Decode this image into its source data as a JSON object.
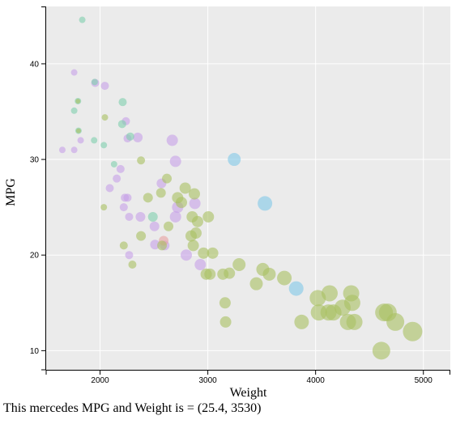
{
  "caption": "This mercedes MPG and Weight is = (25.4, 3530)",
  "chart_data": {
    "type": "scatter",
    "title": "",
    "xlabel": "Weight",
    "ylabel": "MPG",
    "xlim": [
      1500,
      5250
    ],
    "ylim": [
      8,
      46
    ],
    "xticks": [
      2000,
      3000,
      4000,
      5000
    ],
    "yticks": [
      10,
      20,
      30,
      40
    ],
    "grid": true,
    "background": "#ebebeb",
    "grid_color": "#ffffff",
    "series": [
      {
        "color": "#c6a0e8",
        "points": [
          {
            "x": 1760,
            "y": 39.1,
            "r": 4
          },
          {
            "x": 1650,
            "y": 31.0,
            "r": 4
          },
          {
            "x": 1760,
            "y": 31.0,
            "r": 4
          },
          {
            "x": 1820,
            "y": 32.0,
            "r": 4
          },
          {
            "x": 1955,
            "y": 38.0,
            "r": 5
          },
          {
            "x": 2045,
            "y": 37.7,
            "r": 5
          },
          {
            "x": 2155,
            "y": 28.0,
            "r": 5
          },
          {
            "x": 2190,
            "y": 29.0,
            "r": 5
          },
          {
            "x": 2090,
            "y": 27.0,
            "r": 5
          },
          {
            "x": 2240,
            "y": 34.0,
            "r": 5
          },
          {
            "x": 2255,
            "y": 32.2,
            "r": 5
          },
          {
            "x": 2350,
            "y": 32.3,
            "r": 6
          },
          {
            "x": 2230,
            "y": 26.0,
            "r": 5
          },
          {
            "x": 2255,
            "y": 26.0,
            "r": 5
          },
          {
            "x": 2220,
            "y": 25.0,
            "r": 5
          },
          {
            "x": 2270,
            "y": 24.0,
            "r": 5
          },
          {
            "x": 2375,
            "y": 24.0,
            "r": 6
          },
          {
            "x": 2270,
            "y": 20.0,
            "r": 5
          },
          {
            "x": 2505,
            "y": 23.0,
            "r": 6
          },
          {
            "x": 2510,
            "y": 21.1,
            "r": 6
          },
          {
            "x": 2570,
            "y": 27.5,
            "r": 6
          },
          {
            "x": 2670,
            "y": 32.0,
            "r": 7
          },
          {
            "x": 2700,
            "y": 29.8,
            "r": 7
          },
          {
            "x": 2700,
            "y": 24.0,
            "r": 7
          },
          {
            "x": 2720,
            "y": 25.0,
            "r": 7
          },
          {
            "x": 2880,
            "y": 25.4,
            "r": 7
          },
          {
            "x": 2800,
            "y": 20.0,
            "r": 7
          },
          {
            "x": 2930,
            "y": 19.0,
            "r": 7
          },
          {
            "x": 2600,
            "y": 21.0,
            "r": 6
          }
        ]
      },
      {
        "color": "#e8a0a0",
        "points": [
          {
            "x": 2590,
            "y": 21.5,
            "r": 6
          }
        ]
      },
      {
        "color": "#7fcfae",
        "points": [
          {
            "x": 1835,
            "y": 44.6,
            "r": 4
          },
          {
            "x": 1950,
            "y": 38.1,
            "r": 4
          },
          {
            "x": 1795,
            "y": 36.1,
            "r": 4
          },
          {
            "x": 1760,
            "y": 35.1,
            "r": 4
          },
          {
            "x": 1800,
            "y": 33.0,
            "r": 4
          },
          {
            "x": 1945,
            "y": 32.0,
            "r": 4
          },
          {
            "x": 2035,
            "y": 31.5,
            "r": 4
          },
          {
            "x": 2130,
            "y": 29.5,
            "r": 4
          },
          {
            "x": 2210,
            "y": 36.0,
            "r": 5
          },
          {
            "x": 2205,
            "y": 33.7,
            "r": 5
          },
          {
            "x": 2280,
            "y": 32.4,
            "r": 5
          },
          {
            "x": 2490,
            "y": 24.0,
            "r": 6
          }
        ]
      },
      {
        "color": "#a8c060",
        "points": [
          {
            "x": 1795,
            "y": 36.1,
            "r": 3
          },
          {
            "x": 1800,
            "y": 33.0,
            "r": 3
          },
          {
            "x": 2045,
            "y": 34.4,
            "r": 4
          },
          {
            "x": 2035,
            "y": 25.0,
            "r": 4
          },
          {
            "x": 2220,
            "y": 21.0,
            "r": 5
          },
          {
            "x": 2300,
            "y": 19.0,
            "r": 5
          },
          {
            "x": 2380,
            "y": 29.9,
            "r": 5
          },
          {
            "x": 2380,
            "y": 22.0,
            "r": 6
          },
          {
            "x": 2445,
            "y": 26.0,
            "r": 6
          },
          {
            "x": 2565,
            "y": 26.5,
            "r": 6
          },
          {
            "x": 2575,
            "y": 21.0,
            "r": 6
          },
          {
            "x": 2620,
            "y": 28.0,
            "r": 6
          },
          {
            "x": 2635,
            "y": 23.0,
            "r": 6
          },
          {
            "x": 2720,
            "y": 26.0,
            "r": 7
          },
          {
            "x": 2755,
            "y": 25.5,
            "r": 7
          },
          {
            "x": 2790,
            "y": 27.0,
            "r": 7
          },
          {
            "x": 2845,
            "y": 22.0,
            "r": 7
          },
          {
            "x": 2855,
            "y": 24.0,
            "r": 7
          },
          {
            "x": 2865,
            "y": 21.0,
            "r": 7
          },
          {
            "x": 2875,
            "y": 26.4,
            "r": 7
          },
          {
            "x": 2890,
            "y": 22.3,
            "r": 7
          },
          {
            "x": 2905,
            "y": 23.5,
            "r": 7
          },
          {
            "x": 2960,
            "y": 20.2,
            "r": 7
          },
          {
            "x": 2985,
            "y": 18.0,
            "r": 7
          },
          {
            "x": 3005,
            "y": 24.0,
            "r": 7
          },
          {
            "x": 3020,
            "y": 18.0,
            "r": 7
          },
          {
            "x": 3045,
            "y": 20.2,
            "r": 7
          },
          {
            "x": 3140,
            "y": 18.0,
            "r": 7
          },
          {
            "x": 3160,
            "y": 15.0,
            "r": 7
          },
          {
            "x": 3165,
            "y": 13.0,
            "r": 7
          },
          {
            "x": 3200,
            "y": 18.1,
            "r": 7
          },
          {
            "x": 3290,
            "y": 19.0,
            "r": 8
          },
          {
            "x": 3450,
            "y": 17.0,
            "r": 8
          },
          {
            "x": 3510,
            "y": 18.5,
            "r": 8
          },
          {
            "x": 3570,
            "y": 18.0,
            "r": 8
          },
          {
            "x": 3710,
            "y": 17.6,
            "r": 9
          },
          {
            "x": 3870,
            "y": 13.0,
            "r": 9
          },
          {
            "x": 4020,
            "y": 15.5,
            "r": 10
          },
          {
            "x": 4030,
            "y": 14.0,
            "r": 10
          },
          {
            "x": 4120,
            "y": 14.0,
            "r": 10
          },
          {
            "x": 4130,
            "y": 16.0,
            "r": 10
          },
          {
            "x": 4165,
            "y": 14.0,
            "r": 10
          },
          {
            "x": 4250,
            "y": 14.5,
            "r": 10
          },
          {
            "x": 4300,
            "y": 13.0,
            "r": 10
          },
          {
            "x": 4330,
            "y": 16.0,
            "r": 10
          },
          {
            "x": 4340,
            "y": 15.0,
            "r": 10
          },
          {
            "x": 4360,
            "y": 13.0,
            "r": 10
          },
          {
            "x": 4610,
            "y": 10.0,
            "r": 11
          },
          {
            "x": 4635,
            "y": 14.0,
            "r": 11
          },
          {
            "x": 4670,
            "y": 14.0,
            "r": 11
          },
          {
            "x": 4740,
            "y": 13.0,
            "r": 11
          },
          {
            "x": 4900,
            "y": 12.0,
            "r": 12
          }
        ]
      },
      {
        "color": "#80c8e8",
        "points": [
          {
            "x": 3245,
            "y": 30.0,
            "r": 8
          },
          {
            "x": 3530,
            "y": 25.4,
            "r": 9
          },
          {
            "x": 3820,
            "y": 16.5,
            "r": 9
          }
        ]
      }
    ]
  }
}
